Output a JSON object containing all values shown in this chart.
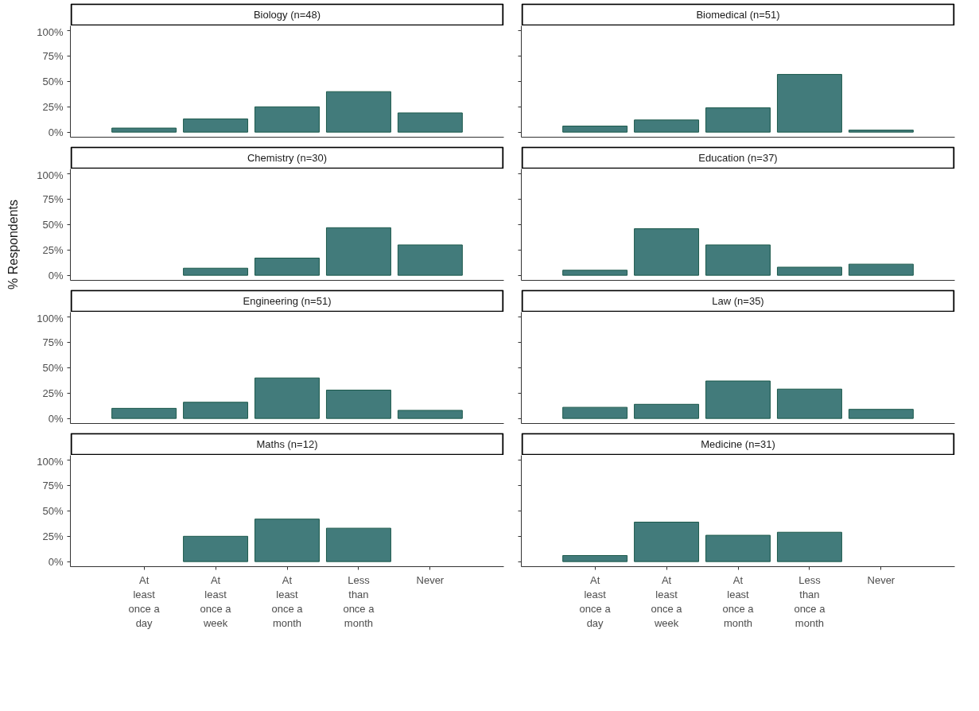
{
  "chart_data": [
    {
      "type": "bar",
      "title": "Biology (n=48)",
      "categories": [
        "At least once a day",
        "At least once a week",
        "At least once a month",
        "Less than once a month",
        "Never"
      ],
      "values": [
        4,
        13,
        25,
        40,
        19
      ],
      "color": "#427b7b",
      "ylim": [
        -5,
        105
      ],
      "yticks": [
        {
          "value": 0,
          "label": "0%"
        },
        {
          "value": 25,
          "label": "25%"
        },
        {
          "value": 50,
          "label": "50%"
        },
        {
          "value": 75,
          "label": "75%"
        },
        {
          "value": 100,
          "label": "100%"
        }
      ],
      "tick_labels": "y"
    },
    {
      "type": "bar",
      "title": "Biomedical (n=51)",
      "categories": [
        "At least once a day",
        "At least once a week",
        "At least once a month",
        "Less than once a month",
        "Never"
      ],
      "values": [
        6,
        12,
        24,
        57,
        2
      ],
      "color": "#427b7b",
      "ylim": [
        -5,
        105
      ],
      "yticks": [
        {
          "value": 0,
          "label": null
        },
        {
          "value": 25,
          "label": null
        },
        {
          "value": 50,
          "label": null
        },
        {
          "value": 75,
          "label": null
        },
        {
          "value": 100,
          "label": null
        }
      ],
      "tick_labels": false
    },
    {
      "type": "bar",
      "title": "Chemistry (n=30)",
      "ylabel": "% Respondents",
      "categories": [
        "At least once a day",
        "At least once a week",
        "At least once a month",
        "Less than once a month",
        "Never"
      ],
      "values": [
        null,
        7,
        17,
        47,
        30
      ],
      "color": "#427b7b",
      "ylim": [
        -5,
        105
      ],
      "yticks": [
        {
          "value": 0,
          "label": "0%"
        },
        {
          "value": 25,
          "label": "25%"
        },
        {
          "value": 50,
          "label": "50%"
        },
        {
          "value": 75,
          "label": "75%"
        },
        {
          "value": 100,
          "label": "100%"
        }
      ],
      "tick_labels": "y"
    },
    {
      "type": "bar",
      "title": "Education (n=37)",
      "categories": [
        "At least once a day",
        "At least once a week",
        "At least once a month",
        "Less than once a month",
        "Never"
      ],
      "values": [
        5,
        46,
        30,
        8,
        11
      ],
      "color": "#427b7b",
      "ylim": [
        -5,
        105
      ],
      "yticks": [
        {
          "value": 0,
          "label": null
        },
        {
          "value": 25,
          "label": null
        },
        {
          "value": 50,
          "label": null
        },
        {
          "value": 75,
          "label": null
        },
        {
          "value": 100,
          "label": null
        }
      ],
      "tick_labels": false
    },
    {
      "type": "bar",
      "title": "Engineering (n=51)",
      "categories": [
        "At least once a day",
        "At least once a week",
        "At least once a month",
        "Less than once a month",
        "Never"
      ],
      "values": [
        10,
        16,
        40,
        28,
        8
      ],
      "color": "#427b7b",
      "ylim": [
        -5,
        105
      ],
      "yticks": [
        {
          "value": 0,
          "label": "0%"
        },
        {
          "value": 25,
          "label": "25%"
        },
        {
          "value": 50,
          "label": "50%"
        },
        {
          "value": 75,
          "label": "75%"
        },
        {
          "value": 100,
          "label": "100%"
        }
      ],
      "tick_labels": "y"
    },
    {
      "type": "bar",
      "title": "Law (n=35)",
      "categories": [
        "At least once a day",
        "At least once a week",
        "At least once a month",
        "Less than once a month",
        "Never"
      ],
      "values": [
        11,
        14,
        37,
        29,
        9
      ],
      "color": "#427b7b",
      "ylim": [
        -5,
        105
      ],
      "yticks": [
        {
          "value": 0,
          "label": null
        },
        {
          "value": 25,
          "label": null
        },
        {
          "value": 50,
          "label": null
        },
        {
          "value": 75,
          "label": null
        },
        {
          "value": 100,
          "label": null
        }
      ],
      "tick_labels": false
    },
    {
      "type": "bar",
      "title": "Maths (n=12)",
      "categories": [
        "At least once a day",
        "At least once a week",
        "At least once a month",
        "Less than once a month",
        "Never"
      ],
      "values": [
        null,
        25,
        42,
        33,
        null
      ],
      "color": "#427b7b",
      "ylim": [
        -5,
        105
      ],
      "yticks": [
        {
          "value": 0,
          "label": "0%"
        },
        {
          "value": 25,
          "label": "25%"
        },
        {
          "value": 50,
          "label": "50%"
        },
        {
          "value": 75,
          "label": "75%"
        },
        {
          "value": 100,
          "label": "100%"
        }
      ]
    },
    {
      "type": "bar",
      "title": "Medicine (n=31)",
      "categories": [
        "At least once a day",
        "At least once a week",
        "At least once a month",
        "Less than once a month",
        "Never"
      ],
      "values": [
        6,
        39,
        26,
        29,
        null
      ],
      "color": "#427b7b",
      "ylim": [
        -5,
        105
      ],
      "yticks": [
        {
          "value": 0,
          "label": null
        },
        {
          "value": 25,
          "label": null
        },
        {
          "value": 50,
          "label": null
        },
        {
          "value": 75,
          "label": null
        },
        {
          "value": 100,
          "label": null
        }
      ],
      "tick_labels": "x"
    }
  ]
}
